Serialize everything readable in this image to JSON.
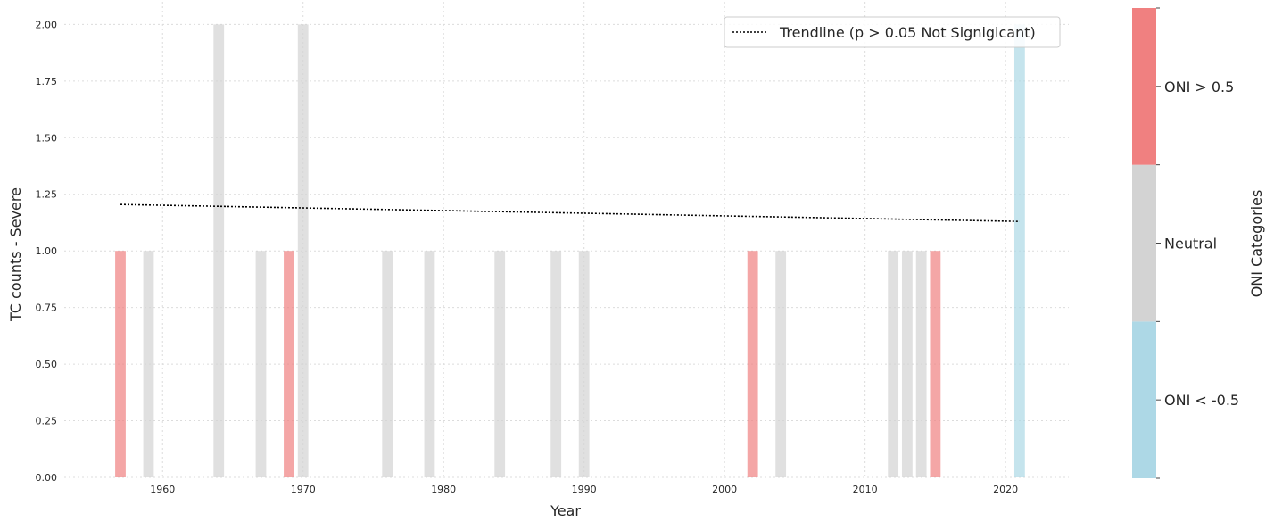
{
  "chart_data": {
    "type": "bar",
    "xlabel": "Year",
    "ylabel": "TC counts - Severe",
    "xlim": [
      1953,
      2024.5
    ],
    "ylim": [
      0,
      2.1
    ],
    "xticks": [
      1960,
      1970,
      1980,
      1990,
      2000,
      2010,
      2020
    ],
    "yticks": [
      "0.00",
      "0.25",
      "0.50",
      "0.75",
      "1.00",
      "1.25",
      "1.50",
      "1.75",
      "2.00"
    ],
    "grid": true,
    "bars": [
      {
        "year": 1957,
        "count": 1,
        "category": "ONI > 0.5"
      },
      {
        "year": 1959,
        "count": 1,
        "category": "Neutral"
      },
      {
        "year": 1964,
        "count": 2,
        "category": "Neutral"
      },
      {
        "year": 1967,
        "count": 1,
        "category": "Neutral"
      },
      {
        "year": 1969,
        "count": 1,
        "category": "ONI > 0.5"
      },
      {
        "year": 1970,
        "count": 2,
        "category": "Neutral"
      },
      {
        "year": 1976,
        "count": 1,
        "category": "Neutral"
      },
      {
        "year": 1979,
        "count": 1,
        "category": "Neutral"
      },
      {
        "year": 1984,
        "count": 1,
        "category": "Neutral"
      },
      {
        "year": 1988,
        "count": 1,
        "category": "Neutral"
      },
      {
        "year": 1990,
        "count": 1,
        "category": "Neutral"
      },
      {
        "year": 2002,
        "count": 1,
        "category": "ONI > 0.5"
      },
      {
        "year": 2004,
        "count": 1,
        "category": "Neutral"
      },
      {
        "year": 2012,
        "count": 1,
        "category": "Neutral"
      },
      {
        "year": 2013,
        "count": 1,
        "category": "Neutral"
      },
      {
        "year": 2014,
        "count": 1,
        "category": "Neutral"
      },
      {
        "year": 2015,
        "count": 1,
        "category": "ONI > 0.5"
      },
      {
        "year": 2021,
        "count": 2,
        "category": "ONI < -0.5"
      }
    ],
    "trendline": {
      "label": "Trendline (p > 0.05 Not Signigicant)",
      "start": {
        "year": 1957,
        "value": 1.205
      },
      "end": {
        "year": 2021,
        "value": 1.13
      }
    },
    "legend_position": "top-right",
    "colorbar": {
      "label": "ONI Categories",
      "categories": [
        {
          "name": "ONI < -0.5",
          "color": "#add8e6"
        },
        {
          "name": "Neutral",
          "color": "#d3d3d3"
        },
        {
          "name": "ONI > 0.5",
          "color": "#f08080"
        }
      ]
    },
    "colors": {
      "ONI > 0.5": "#f08080",
      "Neutral": "#d3d3d3",
      "ONI < -0.5": "#add8e6"
    },
    "bar_opacity": 0.7
  }
}
